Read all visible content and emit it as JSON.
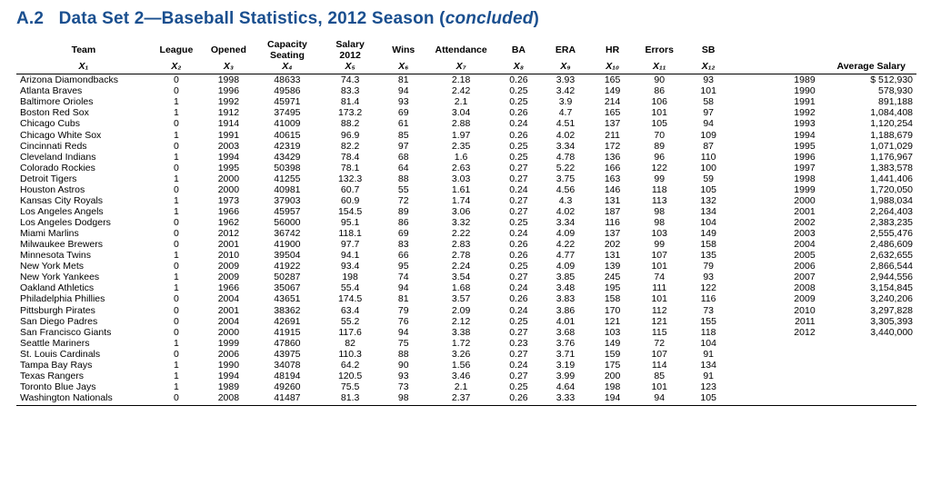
{
  "heading": {
    "prefix": "A.2",
    "main": "Data Set 2—Baseball Statistics, 2012 Season (",
    "italic": "concluded",
    "suffix": ")"
  },
  "columns": {
    "labels": [
      "Team",
      "League",
      "Opened",
      "Capacity\nSeating",
      "Salary\n2012",
      "Wins",
      "Attendance",
      "BA",
      "ERA",
      "HR",
      "Errors",
      "SB"
    ],
    "xsubs": [
      "X₁",
      "X₂",
      "X₃",
      "X₄",
      "X₅",
      "X₆",
      "X₇",
      "X₈",
      "X₉",
      "X₁₀",
      "X₁₁",
      "X₁₂"
    ],
    "avg_label": "Average Salary"
  },
  "rows": [
    {
      "team": "Arizona Diamondbacks",
      "league": "0",
      "opened": "1998",
      "cap": "48633",
      "payroll": "74.3",
      "wins": "81",
      "att": "2.18",
      "ba": "0.26",
      "era": "3.93",
      "hr": "165",
      "err": "90",
      "sb": "93",
      "year": "1989",
      "sal": "$  512,930"
    },
    {
      "team": "Atlanta Braves",
      "league": "0",
      "opened": "1996",
      "cap": "49586",
      "payroll": "83.3",
      "wins": "94",
      "att": "2.42",
      "ba": "0.25",
      "era": "3.42",
      "hr": "149",
      "err": "86",
      "sb": "101",
      "year": "1990",
      "sal": "578,930"
    },
    {
      "team": "Baltimore Orioles",
      "league": "1",
      "opened": "1992",
      "cap": "45971",
      "payroll": "81.4",
      "wins": "93",
      "att": "2.1",
      "ba": "0.25",
      "era": "3.9",
      "hr": "214",
      "err": "106",
      "sb": "58",
      "year": "1991",
      "sal": "891,188"
    },
    {
      "team": "Boston Red Sox",
      "league": "1",
      "opened": "1912",
      "cap": "37495",
      "payroll": "173.2",
      "wins": "69",
      "att": "3.04",
      "ba": "0.26",
      "era": "4.7",
      "hr": "165",
      "err": "101",
      "sb": "97",
      "year": "1992",
      "sal": "1,084,408"
    },
    {
      "team": "Chicago Cubs",
      "league": "0",
      "opened": "1914",
      "cap": "41009",
      "payroll": "88.2",
      "wins": "61",
      "att": "2.88",
      "ba": "0.24",
      "era": "4.51",
      "hr": "137",
      "err": "105",
      "sb": "94",
      "year": "1993",
      "sal": "1,120,254"
    },
    {
      "team": "Chicago White Sox",
      "league": "1",
      "opened": "1991",
      "cap": "40615",
      "payroll": "96.9",
      "wins": "85",
      "att": "1.97",
      "ba": "0.26",
      "era": "4.02",
      "hr": "211",
      "err": "70",
      "sb": "109",
      "year": "1994",
      "sal": "1,188,679"
    },
    {
      "team": "Cincinnati Reds",
      "league": "0",
      "opened": "2003",
      "cap": "42319",
      "payroll": "82.2",
      "wins": "97",
      "att": "2.35",
      "ba": "0.25",
      "era": "3.34",
      "hr": "172",
      "err": "89",
      "sb": "87",
      "year": "1995",
      "sal": "1,071,029"
    },
    {
      "team": "Cleveland Indians",
      "league": "1",
      "opened": "1994",
      "cap": "43429",
      "payroll": "78.4",
      "wins": "68",
      "att": "1.6",
      "ba": "0.25",
      "era": "4.78",
      "hr": "136",
      "err": "96",
      "sb": "110",
      "year": "1996",
      "sal": "1,176,967"
    },
    {
      "team": "Colorado Rockies",
      "league": "0",
      "opened": "1995",
      "cap": "50398",
      "payroll": "78.1",
      "wins": "64",
      "att": "2.63",
      "ba": "0.27",
      "era": "5.22",
      "hr": "166",
      "err": "122",
      "sb": "100",
      "year": "1997",
      "sal": "1,383,578"
    },
    {
      "team": "Detroit Tigers",
      "league": "1",
      "opened": "2000",
      "cap": "41255",
      "payroll": "132.3",
      "wins": "88",
      "att": "3.03",
      "ba": "0.27",
      "era": "3.75",
      "hr": "163",
      "err": "99",
      "sb": "59",
      "year": "1998",
      "sal": "1,441,406"
    },
    {
      "team": "Houston Astros",
      "league": "0",
      "opened": "2000",
      "cap": "40981",
      "payroll": "60.7",
      "wins": "55",
      "att": "1.61",
      "ba": "0.24",
      "era": "4.56",
      "hr": "146",
      "err": "118",
      "sb": "105",
      "year": "1999",
      "sal": "1,720,050"
    },
    {
      "team": "Kansas City Royals",
      "league": "1",
      "opened": "1973",
      "cap": "37903",
      "payroll": "60.9",
      "wins": "72",
      "att": "1.74",
      "ba": "0.27",
      "era": "4.3",
      "hr": "131",
      "err": "113",
      "sb": "132",
      "year": "2000",
      "sal": "1,988,034"
    },
    {
      "team": "Los Angeles Angels",
      "league": "1",
      "opened": "1966",
      "cap": "45957",
      "payroll": "154.5",
      "wins": "89",
      "att": "3.06",
      "ba": "0.27",
      "era": "4.02",
      "hr": "187",
      "err": "98",
      "sb": "134",
      "year": "2001",
      "sal": "2,264,403"
    },
    {
      "team": "Los Angeles Dodgers",
      "league": "0",
      "opened": "1962",
      "cap": "56000",
      "payroll": "95.1",
      "wins": "86",
      "att": "3.32",
      "ba": "0.25",
      "era": "3.34",
      "hr": "116",
      "err": "98",
      "sb": "104",
      "year": "2002",
      "sal": "2,383,235"
    },
    {
      "team": "Miami Marlins",
      "league": "0",
      "opened": "2012",
      "cap": "36742",
      "payroll": "118.1",
      "wins": "69",
      "att": "2.22",
      "ba": "0.24",
      "era": "4.09",
      "hr": "137",
      "err": "103",
      "sb": "149",
      "year": "2003",
      "sal": "2,555,476"
    },
    {
      "team": "Milwaukee Brewers",
      "league": "0",
      "opened": "2001",
      "cap": "41900",
      "payroll": "97.7",
      "wins": "83",
      "att": "2.83",
      "ba": "0.26",
      "era": "4.22",
      "hr": "202",
      "err": "99",
      "sb": "158",
      "year": "2004",
      "sal": "2,486,609"
    },
    {
      "team": "Minnesota Twins",
      "league": "1",
      "opened": "2010",
      "cap": "39504",
      "payroll": "94.1",
      "wins": "66",
      "att": "2.78",
      "ba": "0.26",
      "era": "4.77",
      "hr": "131",
      "err": "107",
      "sb": "135",
      "year": "2005",
      "sal": "2,632,655"
    },
    {
      "team": "New York Mets",
      "league": "0",
      "opened": "2009",
      "cap": "41922",
      "payroll": "93.4",
      "wins": "95",
      "att": "2.24",
      "ba": "0.25",
      "era": "4.09",
      "hr": "139",
      "err": "101",
      "sb": "79",
      "year": "2006",
      "sal": "2,866,544"
    },
    {
      "team": "New York Yankees",
      "league": "1",
      "opened": "2009",
      "cap": "50287",
      "payroll": "198",
      "wins": "74",
      "att": "3.54",
      "ba": "0.27",
      "era": "3.85",
      "hr": "245",
      "err": "74",
      "sb": "93",
      "year": "2007",
      "sal": "2,944,556"
    },
    {
      "team": "Oakland Athletics",
      "league": "1",
      "opened": "1966",
      "cap": "35067",
      "payroll": "55.4",
      "wins": "94",
      "att": "1.68",
      "ba": "0.24",
      "era": "3.48",
      "hr": "195",
      "err": "111",
      "sb": "122",
      "year": "2008",
      "sal": "3,154,845"
    },
    {
      "team": "Philadelphia Phillies",
      "league": "0",
      "opened": "2004",
      "cap": "43651",
      "payroll": "174.5",
      "wins": "81",
      "att": "3.57",
      "ba": "0.26",
      "era": "3.83",
      "hr": "158",
      "err": "101",
      "sb": "116",
      "year": "2009",
      "sal": "3,240,206"
    },
    {
      "team": "Pittsburgh Pirates",
      "league": "0",
      "opened": "2001",
      "cap": "38362",
      "payroll": "63.4",
      "wins": "79",
      "att": "2.09",
      "ba": "0.24",
      "era": "3.86",
      "hr": "170",
      "err": "112",
      "sb": "73",
      "year": "2010",
      "sal": "3,297,828"
    },
    {
      "team": "San Diego Padres",
      "league": "0",
      "opened": "2004",
      "cap": "42691",
      "payroll": "55.2",
      "wins": "76",
      "att": "2.12",
      "ba": "0.25",
      "era": "4.01",
      "hr": "121",
      "err": "121",
      "sb": "155",
      "year": "2011",
      "sal": "3,305,393"
    },
    {
      "team": "San Francisco Giants",
      "league": "0",
      "opened": "2000",
      "cap": "41915",
      "payroll": "117.6",
      "wins": "94",
      "att": "3.38",
      "ba": "0.27",
      "era": "3.68",
      "hr": "103",
      "err": "115",
      "sb": "118",
      "year": "2012",
      "sal": "3,440,000"
    },
    {
      "team": "Seattle Mariners",
      "league": "1",
      "opened": "1999",
      "cap": "47860",
      "payroll": "82",
      "wins": "75",
      "att": "1.72",
      "ba": "0.23",
      "era": "3.76",
      "hr": "149",
      "err": "72",
      "sb": "104",
      "year": "",
      "sal": ""
    },
    {
      "team": "St. Louis Cardinals",
      "league": "0",
      "opened": "2006",
      "cap": "43975",
      "payroll": "110.3",
      "wins": "88",
      "att": "3.26",
      "ba": "0.27",
      "era": "3.71",
      "hr": "159",
      "err": "107",
      "sb": "91",
      "year": "",
      "sal": ""
    },
    {
      "team": "Tampa Bay Rays",
      "league": "1",
      "opened": "1990",
      "cap": "34078",
      "payroll": "64.2",
      "wins": "90",
      "att": "1.56",
      "ba": "0.24",
      "era": "3.19",
      "hr": "175",
      "err": "114",
      "sb": "134",
      "year": "",
      "sal": ""
    },
    {
      "team": "Texas Rangers",
      "league": "1",
      "opened": "1994",
      "cap": "48194",
      "payroll": "120.5",
      "wins": "93",
      "att": "3.46",
      "ba": "0.27",
      "era": "3.99",
      "hr": "200",
      "err": "85",
      "sb": "91",
      "year": "",
      "sal": ""
    },
    {
      "team": "Toronto Blue Jays",
      "league": "1",
      "opened": "1989",
      "cap": "49260",
      "payroll": "75.5",
      "wins": "73",
      "att": "2.1",
      "ba": "0.25",
      "era": "4.64",
      "hr": "198",
      "err": "101",
      "sb": "123",
      "year": "",
      "sal": ""
    },
    {
      "team": "Washington Nationals",
      "league": "0",
      "opened": "2008",
      "cap": "41487",
      "payroll": "81.3",
      "wins": "98",
      "att": "2.37",
      "ba": "0.26",
      "era": "3.33",
      "hr": "194",
      "err": "94",
      "sb": "105",
      "year": "",
      "sal": ""
    }
  ]
}
